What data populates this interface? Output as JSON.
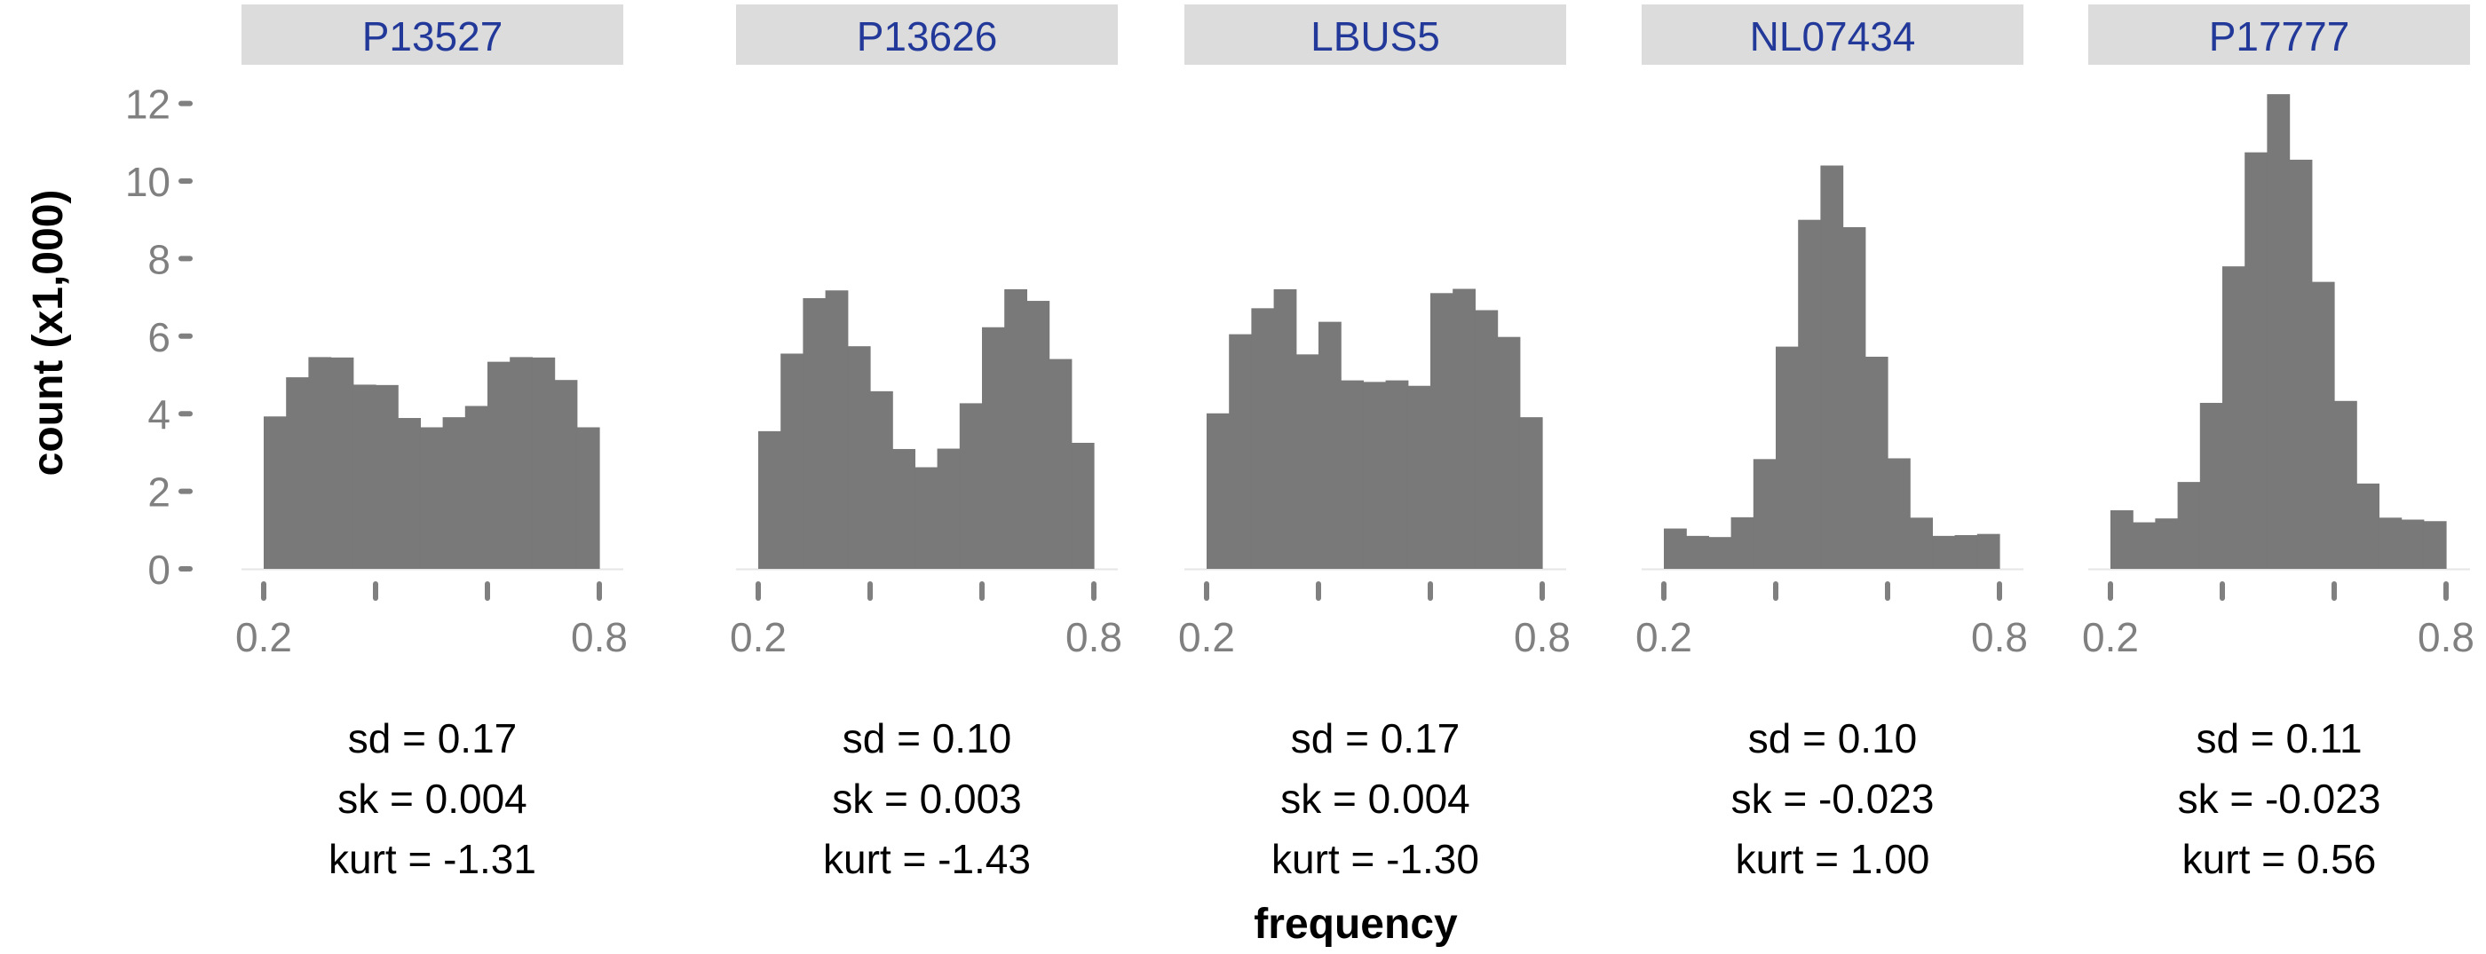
{
  "chart_data": {
    "type": "bar",
    "subtype": "faceted-histogram",
    "xlabel": "frequency",
    "ylabel": "count (x1,000)",
    "ylim": [
      0,
      12.5
    ],
    "yticks": [
      0,
      2,
      4,
      6,
      8,
      10,
      12
    ],
    "xlim": [
      0.2,
      0.8
    ],
    "xticks": [
      0.2,
      0.4,
      0.6,
      0.8
    ],
    "xtick_labels": [
      "0.2",
      "",
      "",
      "0.8"
    ],
    "bin_start": 0.2,
    "bin_width": 0.04,
    "bar_color": "#797979",
    "strip_color": "#dcdcdc",
    "strip_text_color": "#22399a",
    "grid": false,
    "panels": [
      {
        "name": "P13527",
        "values": [
          3.93,
          4.94,
          5.46,
          5.45,
          4.75,
          4.74,
          3.89,
          3.65,
          3.91,
          4.2,
          5.34,
          5.46,
          5.45,
          4.87,
          3.65
        ],
        "stats": [
          "sd = 0.17",
          "sk = 0.004",
          "kurt = -1.31"
        ]
      },
      {
        "name": "P13626",
        "values": [
          3.55,
          5.55,
          6.98,
          7.18,
          5.74,
          4.58,
          3.09,
          2.62,
          3.1,
          4.27,
          6.23,
          7.21,
          6.91,
          5.41,
          3.25
        ],
        "stats": [
          "sd = 0.10",
          "sk = 0.003",
          "kurt = -1.43"
        ]
      },
      {
        "name": "LBUS5",
        "values": [
          4.01,
          6.05,
          6.72,
          7.21,
          5.53,
          6.37,
          4.86,
          4.82,
          4.86,
          4.72,
          7.11,
          7.22,
          6.67,
          5.98,
          3.91
        ],
        "stats": [
          "sd = 0.17",
          "sk = 0.004",
          "kurt = -1.30"
        ]
      },
      {
        "name": "NL07434",
        "values": [
          1.04,
          0.85,
          0.82,
          1.33,
          2.83,
          5.73,
          9.0,
          10.4,
          8.81,
          5.47,
          2.85,
          1.32,
          0.85,
          0.87,
          0.9
        ],
        "stats": [
          "sd = 0.10",
          "sk = -0.023",
          "kurt = 1.00"
        ]
      },
      {
        "name": "P17777",
        "values": [
          1.51,
          1.2,
          1.3,
          2.24,
          4.28,
          7.8,
          10.74,
          12.24,
          10.55,
          7.4,
          4.33,
          2.2,
          1.32,
          1.27,
          1.23
        ],
        "stats": [
          "sd = 0.11",
          "sk = -0.023",
          "kurt = 0.56"
        ]
      }
    ]
  }
}
